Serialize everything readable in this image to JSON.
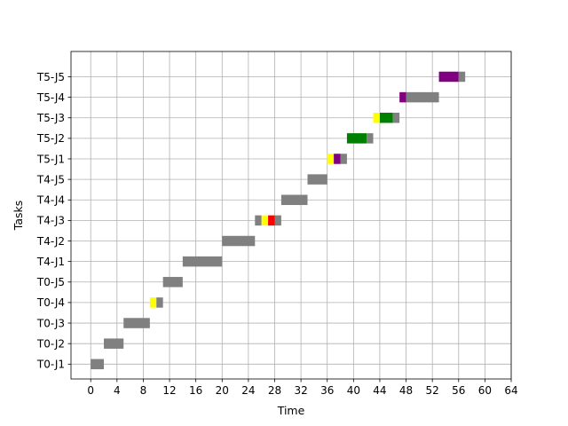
{
  "chart_data": {
    "type": "gantt",
    "title": "",
    "xlabel": "Time",
    "ylabel": "Tasks",
    "xlim": [
      -3,
      64
    ],
    "x_ticks": [
      0,
      4,
      8,
      12,
      16,
      20,
      24,
      28,
      32,
      36,
      40,
      44,
      48,
      52,
      56,
      60,
      64
    ],
    "grid": true,
    "legend": "none",
    "colors": {
      "gray": "#808080",
      "yellow": "#ffff00",
      "purple": "#800080",
      "red": "#ff0000",
      "green": "#008000"
    },
    "tasks": [
      "T0-J1",
      "T0-J2",
      "T0-J3",
      "T0-J4",
      "T0-J5",
      "T4-J1",
      "T4-J2",
      "T4-J3",
      "T4-J4",
      "T4-J5",
      "T5-J1",
      "T5-J2",
      "T5-J3",
      "T5-J4",
      "T5-J5"
    ],
    "segments": [
      {
        "task": "T0-J1",
        "start": 0,
        "end": 2,
        "color": "gray"
      },
      {
        "task": "T0-J2",
        "start": 2,
        "end": 5,
        "color": "gray"
      },
      {
        "task": "T0-J3",
        "start": 5,
        "end": 9,
        "color": "gray"
      },
      {
        "task": "T0-J4",
        "start": 9,
        "end": 10,
        "color": "yellow"
      },
      {
        "task": "T0-J4",
        "start": 10,
        "end": 11,
        "color": "gray"
      },
      {
        "task": "T0-J5",
        "start": 11,
        "end": 14,
        "color": "gray"
      },
      {
        "task": "T4-J1",
        "start": 14,
        "end": 20,
        "color": "gray"
      },
      {
        "task": "T4-J2",
        "start": 20,
        "end": 25,
        "color": "gray"
      },
      {
        "task": "T4-J3",
        "start": 25,
        "end": 26,
        "color": "gray"
      },
      {
        "task": "T4-J3",
        "start": 26,
        "end": 27,
        "color": "yellow"
      },
      {
        "task": "T4-J3",
        "start": 27,
        "end": 28,
        "color": "red"
      },
      {
        "task": "T4-J3",
        "start": 28,
        "end": 29,
        "color": "gray"
      },
      {
        "task": "T4-J4",
        "start": 29,
        "end": 33,
        "color": "gray"
      },
      {
        "task": "T4-J5",
        "start": 33,
        "end": 36,
        "color": "gray"
      },
      {
        "task": "T5-J1",
        "start": 36,
        "end": 37,
        "color": "yellow"
      },
      {
        "task": "T5-J1",
        "start": 37,
        "end": 38,
        "color": "purple"
      },
      {
        "task": "T5-J1",
        "start": 38,
        "end": 39,
        "color": "gray"
      },
      {
        "task": "T5-J2",
        "start": 39,
        "end": 42,
        "color": "green"
      },
      {
        "task": "T5-J2",
        "start": 42,
        "end": 43,
        "color": "gray"
      },
      {
        "task": "T5-J3",
        "start": 43,
        "end": 44,
        "color": "yellow"
      },
      {
        "task": "T5-J3",
        "start": 44,
        "end": 46,
        "color": "green"
      },
      {
        "task": "T5-J3",
        "start": 46,
        "end": 47,
        "color": "gray"
      },
      {
        "task": "T5-J4",
        "start": 47,
        "end": 48,
        "color": "purple"
      },
      {
        "task": "T5-J4",
        "start": 48,
        "end": 53,
        "color": "gray"
      },
      {
        "task": "T5-J5",
        "start": 53,
        "end": 56,
        "color": "purple"
      },
      {
        "task": "T5-J5",
        "start": 56,
        "end": 57,
        "color": "gray"
      }
    ]
  }
}
